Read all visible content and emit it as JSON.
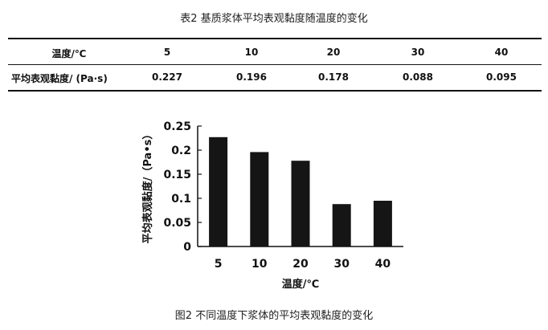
{
  "table": {
    "caption": "表2 基质浆体平均表观黏度随温度的变化",
    "header_label": "温度/℃",
    "row_label": "平均表观黏度/ (Pa·s)",
    "temperatures": [
      "5",
      "10",
      "20",
      "30",
      "40"
    ],
    "viscosities": [
      "0.227",
      "0.196",
      "0.178",
      "0.088",
      "0.095"
    ]
  },
  "chart_data": {
    "type": "bar",
    "categories": [
      "5",
      "10",
      "20",
      "30",
      "40"
    ],
    "values": [
      0.227,
      0.196,
      0.178,
      0.088,
      0.095
    ],
    "xlabel": "温度/℃",
    "ylabel": "平均表观黏度/（Pa•s）",
    "ylim": [
      0,
      0.25
    ],
    "yticks": [
      "0",
      "0.05",
      "0.1",
      "0.15",
      "0.2",
      "0.25"
    ],
    "bar_color": "#151515",
    "grid": false
  },
  "figure": {
    "caption": "图2 不同温度下浆体的平均表观黏度的变化"
  }
}
